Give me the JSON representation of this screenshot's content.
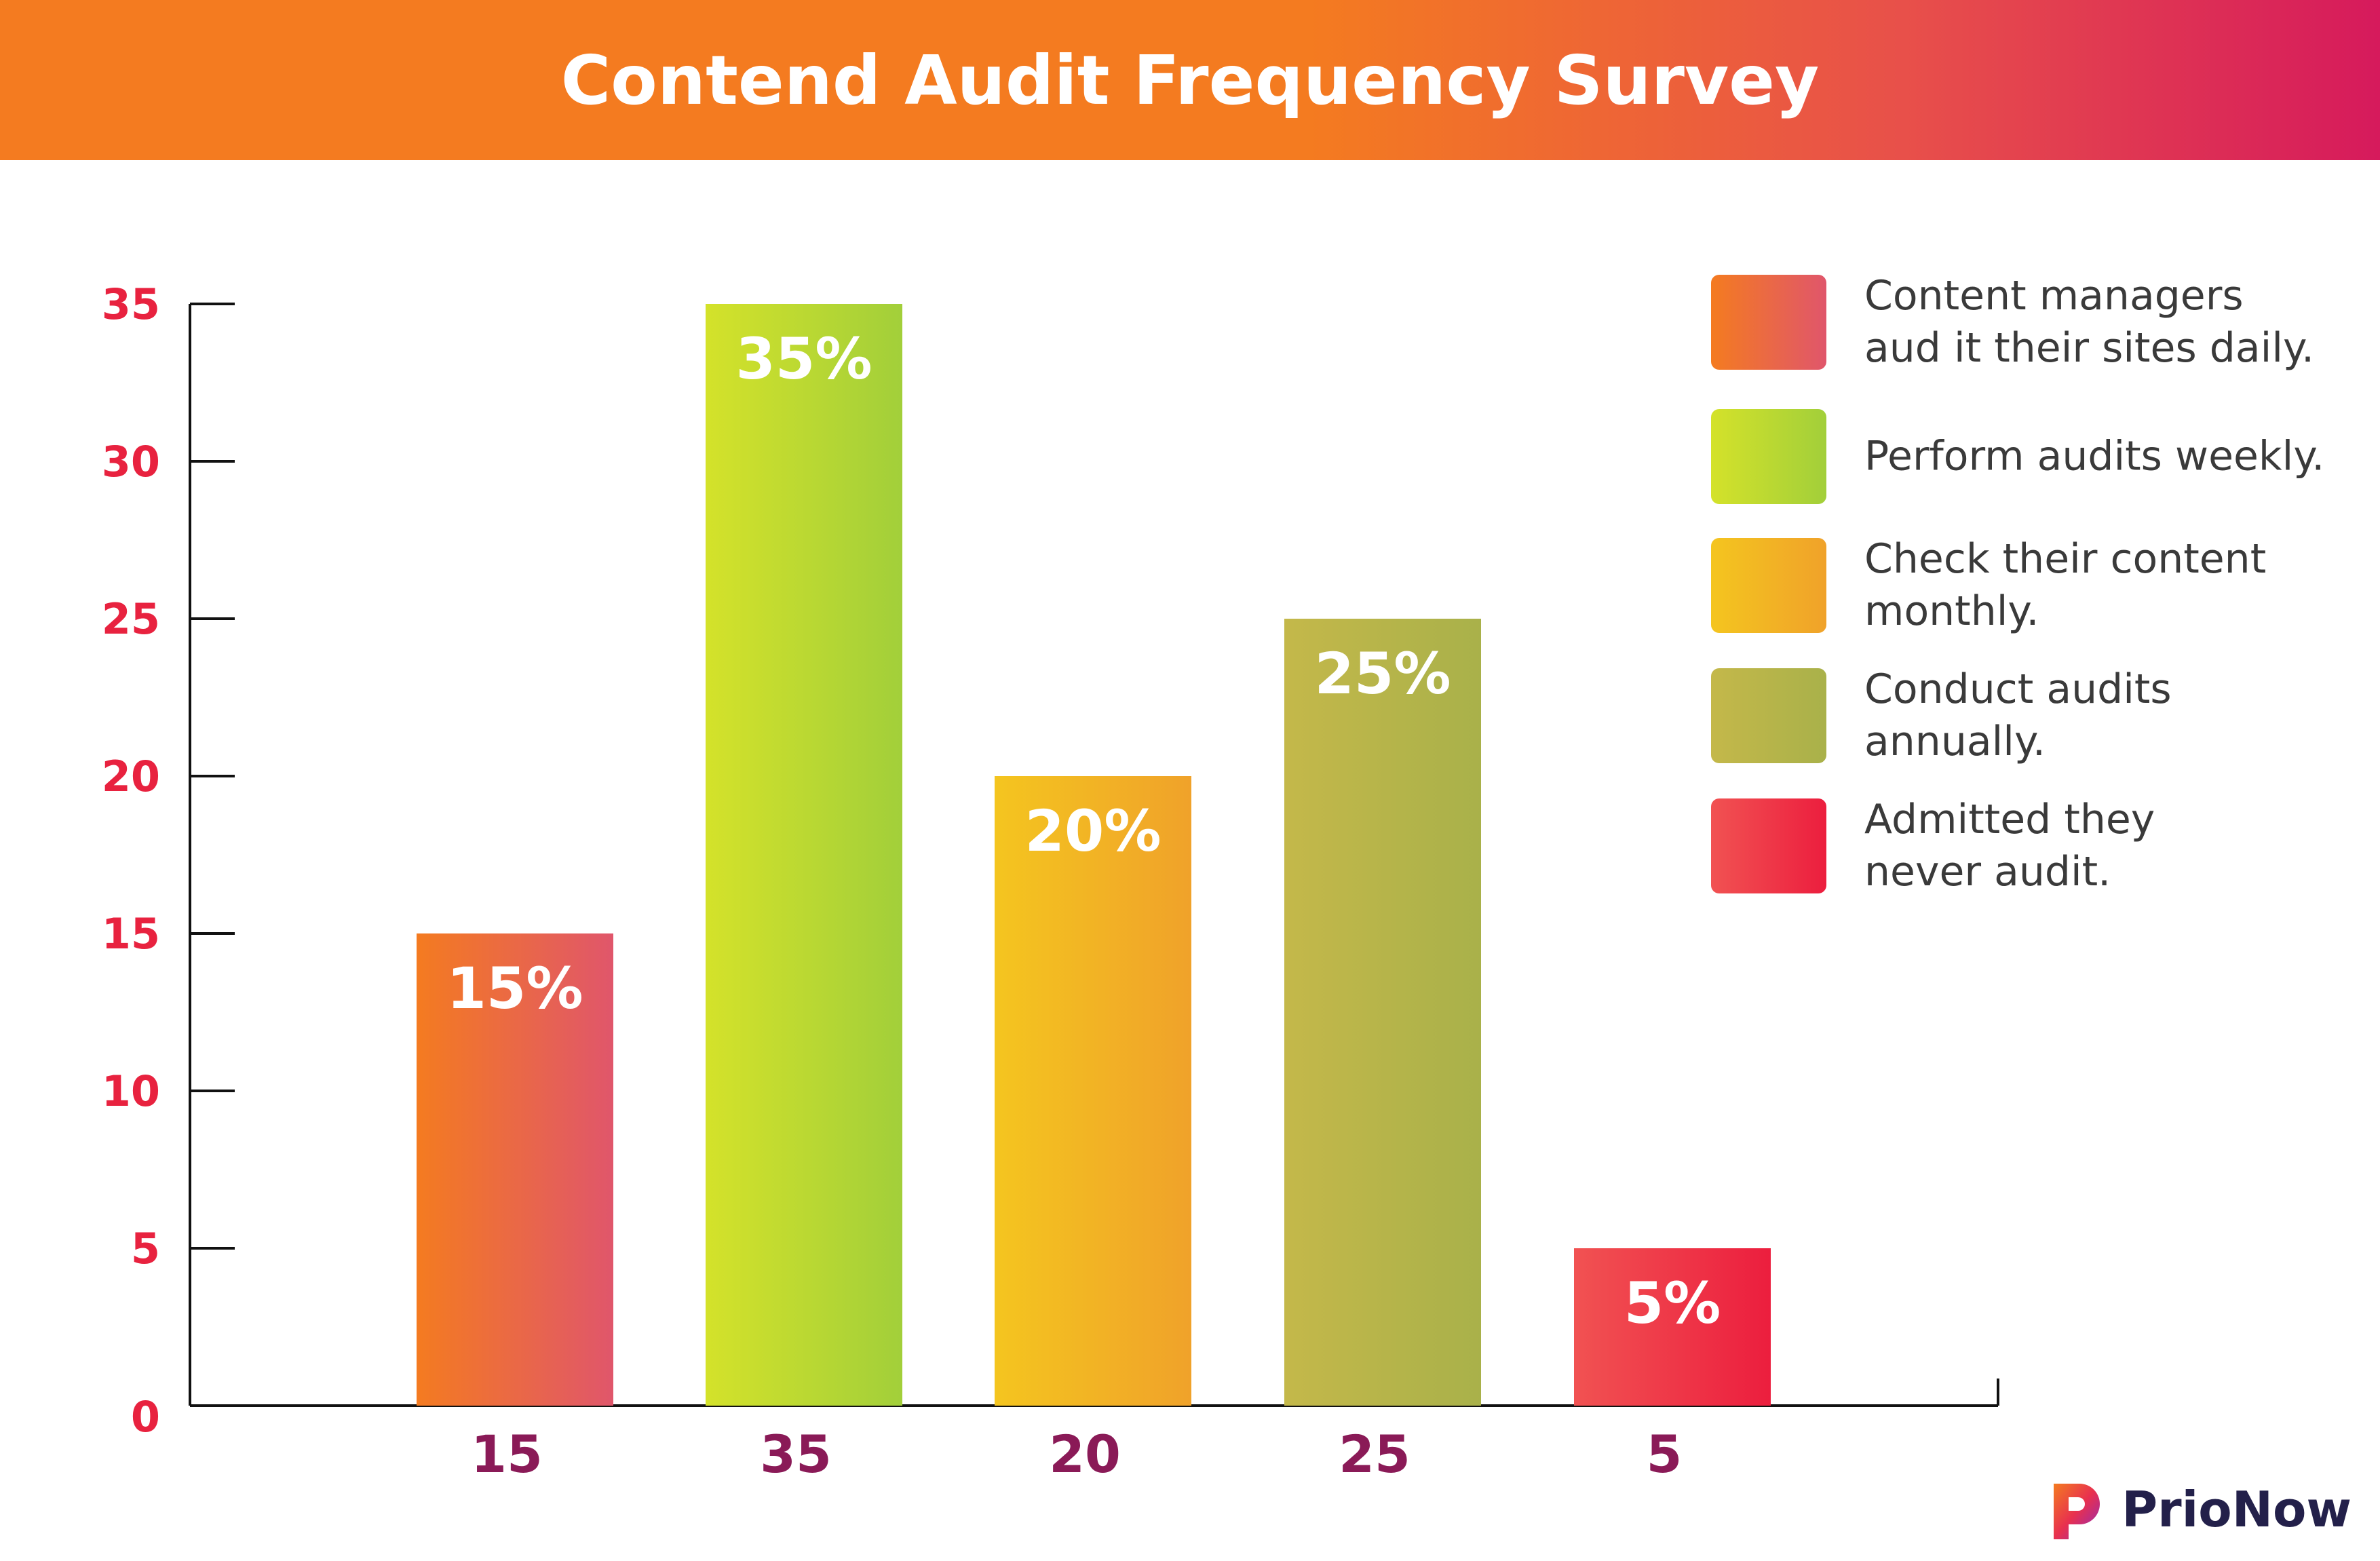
{
  "chart_data": {
    "type": "bar",
    "title": "Contend Audit Frequency Survey",
    "categories": [
      "15",
      "35",
      "20",
      "25",
      "5"
    ],
    "values": [
      15,
      35,
      20,
      25,
      5
    ],
    "data_labels": [
      "15%",
      "35%",
      "20%",
      "25%",
      "5%"
    ],
    "yticks": [
      "0",
      "5",
      "10",
      "15",
      "20",
      "25",
      "30",
      "35"
    ],
    "ylim": [
      0,
      35
    ],
    "grid": false,
    "legend_position": "top-right",
    "series_colors": [
      [
        "#f47b20",
        "#e0566b"
      ],
      [
        "#d4e22a",
        "#a2cf3a"
      ],
      [
        "#f4c51f",
        "#f0a22a"
      ],
      [
        "#c4b84a",
        "#a9b14a"
      ],
      [
        "#f15252",
        "#ec1e3e"
      ]
    ],
    "legend": [
      "Content managers\naud it their sites daily.",
      "Perform audits weekly.",
      "Check their content\nmonthly.",
      "Conduct audits\nannually.",
      "Admitted they\nnever audit."
    ]
  },
  "colors": {
    "ytick_color": "#e8223f",
    "xtick_color": "#8a1a57",
    "axis_color": "#111111"
  },
  "brand": {
    "name": "PrioNow",
    "logo_icon": "prionow-logo-icon"
  }
}
